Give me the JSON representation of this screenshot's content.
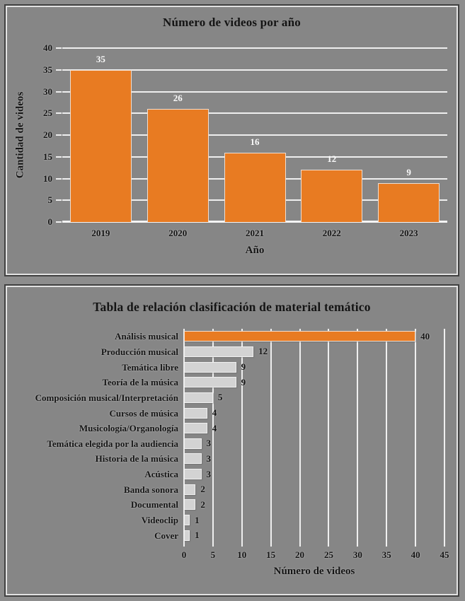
{
  "page": {
    "background_color": "#8d8d8d",
    "panel_fill": "#868686",
    "panel_border_color": "#404040",
    "panel_inner_border_color": "#e3e3e3",
    "gridline_color": "#efefef",
    "text_color": "#141414"
  },
  "chart_data": [
    {
      "type": "bar",
      "title": "Número de videos por año",
      "xlabel": "Año",
      "ylabel": "Cantidad de videos",
      "categories": [
        "2019",
        "2020",
        "2021",
        "2022",
        "2023"
      ],
      "values": [
        35,
        26,
        16,
        12,
        9
      ],
      "ylim": [
        0,
        40
      ],
      "yticks": [
        0,
        5,
        10,
        15,
        20,
        25,
        30,
        35,
        40
      ],
      "grid": "horizontal-white",
      "legend": "none",
      "bar_color": "#e87b22",
      "data_label_color": "#fafafa"
    },
    {
      "type": "bar-horizontal",
      "title": "Tabla de relación clasificación de material temático",
      "xlabel": "Número de videos",
      "categories": [
        "Análisis musical",
        "Producción musical",
        "Temática libre",
        "Teoría de la música",
        "Composición musical/Interpretación",
        "Cursos de música",
        "Musicología/Organología",
        "Temática elegida por la audiencia",
        "Historia de la música",
        "Acústica",
        "Banda sonora",
        "Documental",
        "Videoclip",
        "Cover"
      ],
      "values": [
        40,
        12,
        9,
        9,
        5,
        4,
        4,
        3,
        3,
        3,
        2,
        2,
        1,
        1
      ],
      "xlim": [
        0,
        45
      ],
      "xticks": [
        0,
        5,
        10,
        15,
        20,
        25,
        30,
        35,
        40,
        45
      ],
      "grid": "vertical-white",
      "legend": "none",
      "bar_color": "#d3d3d3",
      "highlight_index": 0,
      "highlight_color": "#e87b22",
      "data_label_color": "#141414"
    }
  ]
}
